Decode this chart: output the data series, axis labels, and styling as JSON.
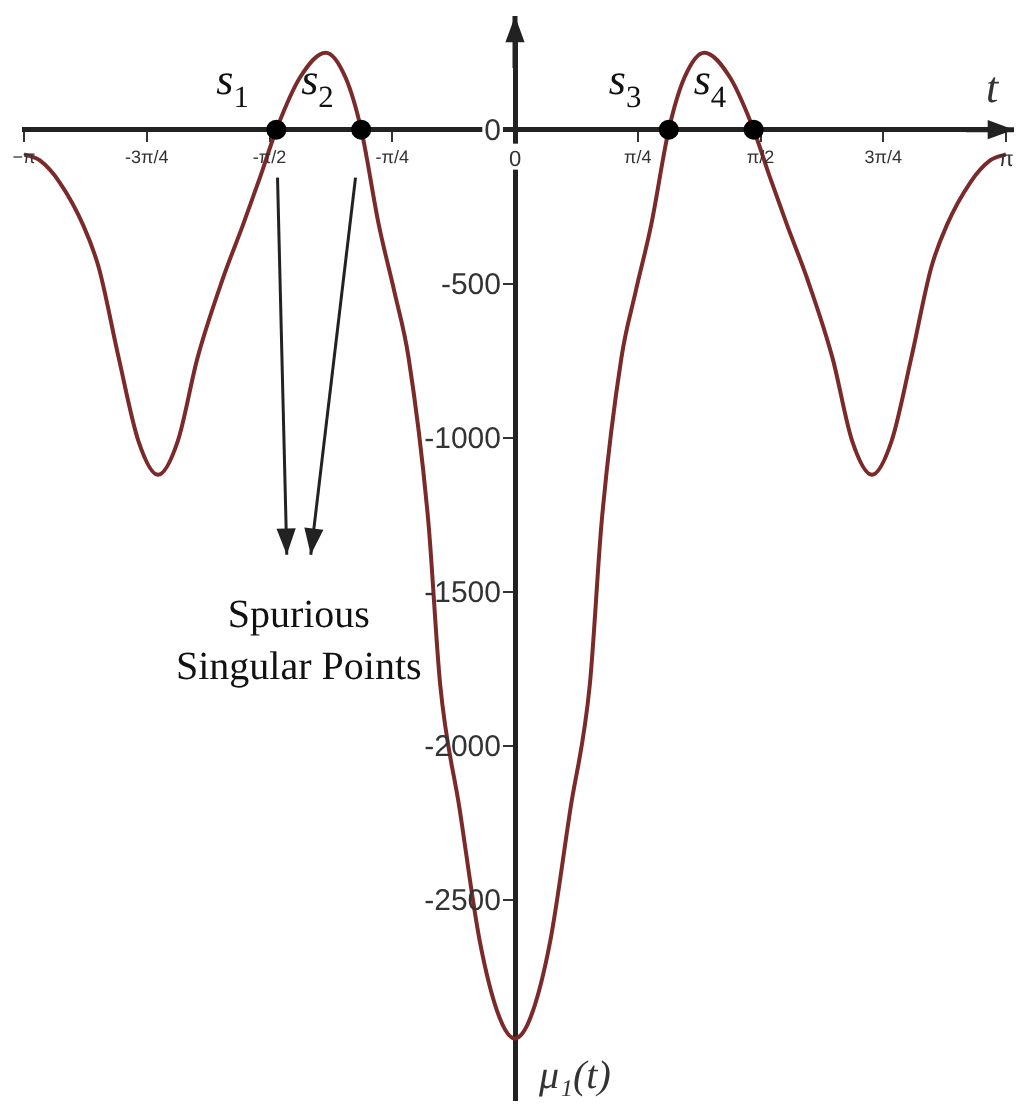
{
  "chart_data": {
    "type": "line",
    "xlabel": "t",
    "ylabel": "μ₁(t)",
    "xlim": [
      -3.1416,
      3.1416
    ],
    "ylim": [
      -3150,
      330
    ],
    "xticks": [
      {
        "value": -3.1416,
        "label": "−π"
      },
      {
        "value": -2.3562,
        "label": "-3π/4"
      },
      {
        "value": -1.5708,
        "label": "-π/2"
      },
      {
        "value": -0.7854,
        "label": "-π/4"
      },
      0,
      {
        "value": 0.7854,
        "label": "π/4"
      },
      {
        "value": 1.5708,
        "label": "π/2"
      },
      {
        "value": 2.3562,
        "label": "3π/4"
      },
      {
        "value": 3.1416,
        "label": "π"
      }
    ],
    "yticks": [
      0,
      -500,
      -1000,
      -1500,
      -2000,
      -2500
    ],
    "series": [
      {
        "type": "line",
        "color": "#7b2a2a",
        "marker": "none",
        "x": [
          -3.1416,
          -3.04,
          -2.915,
          -2.763,
          -2.662,
          -2.536,
          -2.41,
          -2.284,
          -2.157,
          -2.031,
          -1.867,
          -1.741,
          -1.628,
          -1.527,
          -1.375,
          -1.211,
          -1.085,
          -0.984,
          -0.871,
          -0.77,
          -0.681,
          -0.555,
          -0.479,
          -0.353,
          -0.227,
          -0.101,
          0,
          0.101,
          0.227,
          0.353,
          0.479,
          0.555,
          0.681,
          0.77,
          0.871,
          0.984,
          1.085,
          1.211,
          1.375,
          1.527,
          1.628,
          1.741,
          1.867,
          2.031,
          2.157,
          2.284,
          2.41,
          2.536,
          2.662,
          2.763,
          2.915,
          3.04,
          3.1416
        ],
        "values": [
          -80,
          -100,
          -170,
          -310,
          -450,
          -740,
          -1010,
          -1120,
          -1010,
          -740,
          -480,
          -310,
          -150,
          0,
          170,
          250,
          170,
          0,
          -310,
          -530,
          -740,
          -1270,
          -1800,
          -2210,
          -2630,
          -2880,
          -2950,
          -2880,
          -2630,
          -2210,
          -1800,
          -1270,
          -740,
          -530,
          -310,
          0,
          170,
          250,
          170,
          0,
          -150,
          -310,
          -480,
          -740,
          -1010,
          -1120,
          -1010,
          -740,
          -450,
          -310,
          -170,
          -100,
          -80
        ]
      },
      {
        "type": "scatter",
        "color": "#000000",
        "marker": "circle",
        "x": [
          -1.527,
          -0.984,
          0.984,
          1.527
        ],
        "values": [
          0,
          0,
          0,
          0
        ]
      }
    ],
    "annotations": [
      {
        "text": "s$_{1}$",
        "x": -1.527,
        "y": 0
      },
      {
        "text": "s$_{2}$",
        "x": -0.984,
        "y": 0
      },
      {
        "text": "s$_{3}$",
        "x": 0.984,
        "y": 0
      },
      {
        "text": "s$_{4}$",
        "x": 1.527,
        "y": 0
      },
      "Spurious Singular Points"
    ]
  }
}
